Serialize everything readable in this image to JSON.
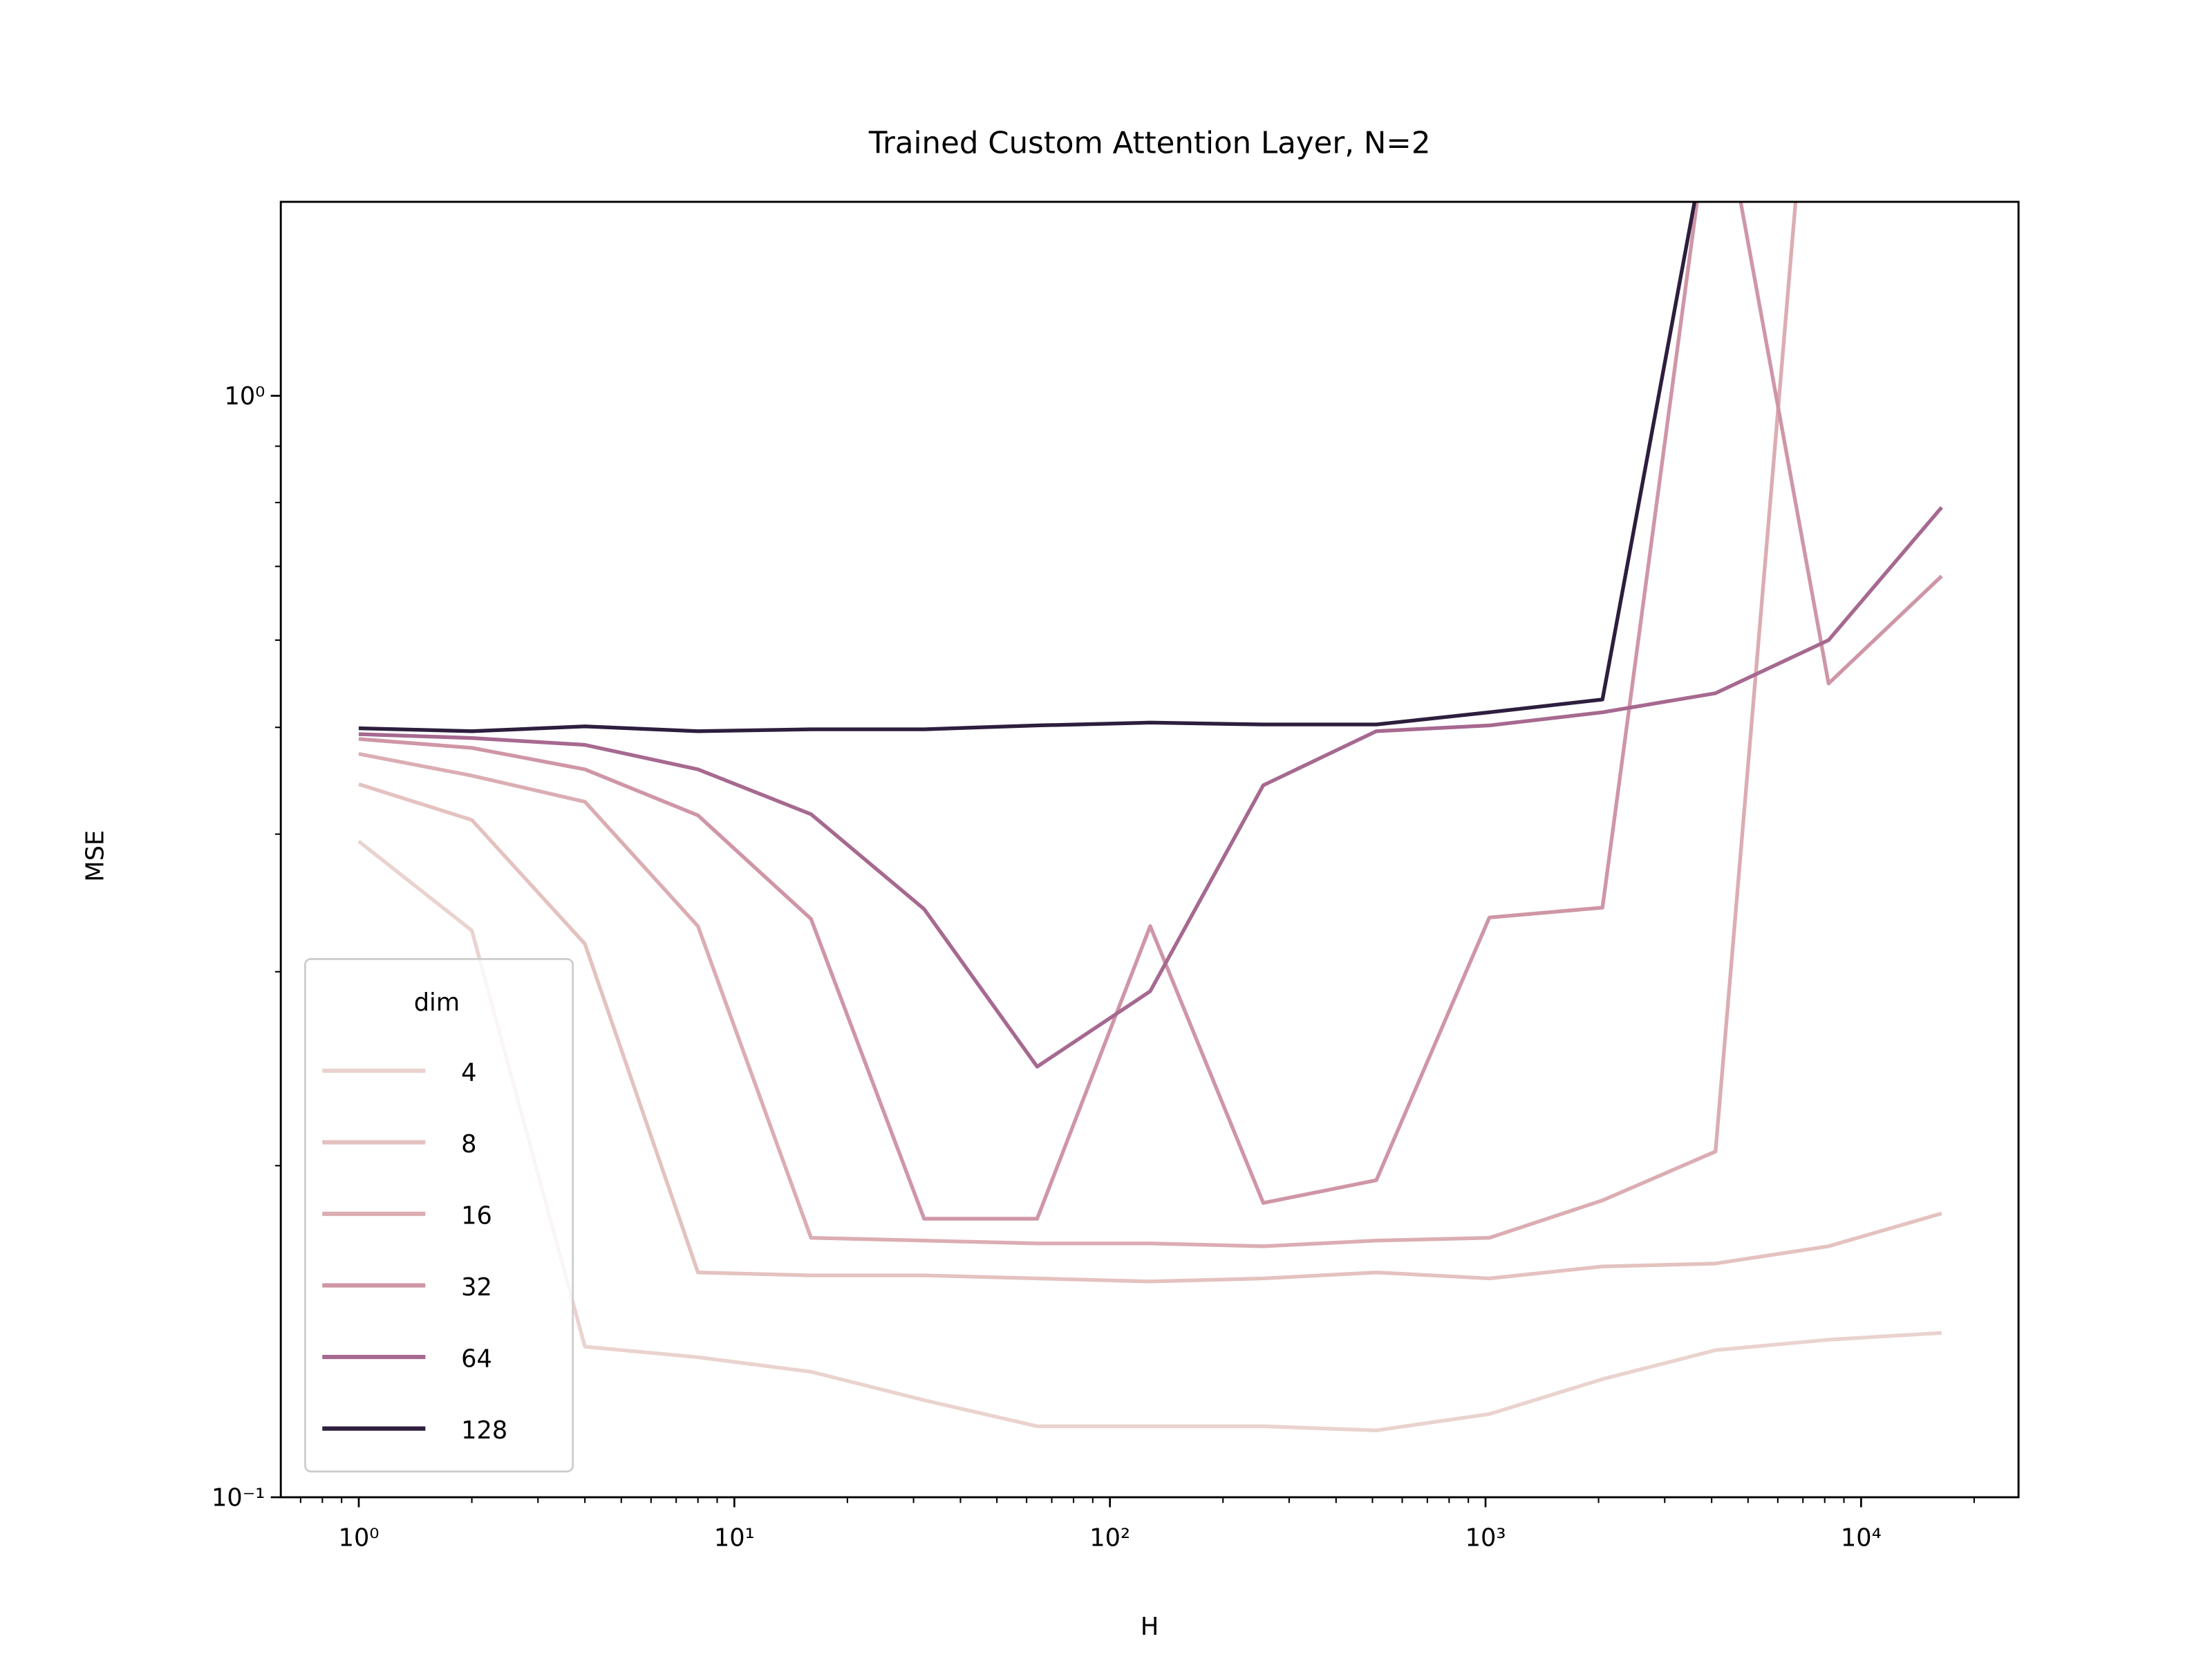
{
  "chart_data": {
    "type": "line",
    "title": "Trained Custom Attention Layer, N=2",
    "x_label": "H",
    "y_label": "MSE",
    "x_scale": "log",
    "y_scale": "log",
    "legend_title": "dim",
    "legend_position": "lower left",
    "x": [
      1,
      2,
      4,
      8,
      16,
      32,
      64,
      128,
      256,
      512,
      1024,
      2048,
      4096,
      8192,
      16384
    ],
    "series": [
      {
        "name": "4",
        "color": "#ead3cf",
        "values": [
          0.394,
          0.327,
          0.137,
          0.134,
          0.13,
          0.1225,
          0.116,
          0.116,
          0.116,
          0.115,
          0.119,
          0.128,
          0.136,
          0.139,
          0.141
        ]
      },
      {
        "name": "8",
        "color": "#e4c2c0",
        "values": [
          0.444,
          0.412,
          0.318,
          0.16,
          0.159,
          0.159,
          0.158,
          0.157,
          0.158,
          0.16,
          0.158,
          0.162,
          0.163,
          0.169,
          0.181
        ]
      },
      {
        "name": "16",
        "color": "#dbadb3",
        "values": [
          0.473,
          0.452,
          0.428,
          0.33,
          0.172,
          0.171,
          0.17,
          0.17,
          0.169,
          0.171,
          0.172,
          0.186,
          0.206,
          3.4,
          null
        ]
      },
      {
        "name": "32",
        "color": "#cf96a6",
        "values": [
          0.488,
          0.479,
          0.458,
          0.416,
          0.335,
          0.179,
          0.179,
          0.33,
          0.185,
          0.194,
          0.336,
          0.343,
          2.0,
          0.548,
          0.686
        ]
      },
      {
        "name": "64",
        "color": "#a66990",
        "values": [
          0.493,
          0.489,
          0.482,
          0.458,
          0.417,
          0.342,
          0.246,
          0.288,
          0.443,
          0.496,
          0.502,
          0.516,
          0.537,
          0.6,
          0.792
        ]
      },
      {
        "name": "128",
        "color": "#2d1e3e",
        "values": [
          0.499,
          0.496,
          0.501,
          0.496,
          0.498,
          0.498,
          0.502,
          0.505,
          0.503,
          0.503,
          0.516,
          0.53,
          1.9,
          null,
          null
        ]
      }
    ],
    "xlim": [
      0.62,
      26250
    ],
    "ylim": [
      0.1,
      1.5
    ],
    "xticks": [
      {
        "value": 1,
        "label": "10⁰"
      },
      {
        "value": 10,
        "label": "10¹"
      },
      {
        "value": 100,
        "label": "10²"
      },
      {
        "value": 1000,
        "label": "10³"
      },
      {
        "value": 10000,
        "label": "10⁴"
      }
    ],
    "yticks": [
      {
        "value": 0.1,
        "label": "10⁻¹"
      },
      {
        "value": 1,
        "label": "10⁰"
      }
    ],
    "xminorticks": [
      0.7,
      0.8,
      0.9,
      2,
      3,
      4,
      5,
      6,
      7,
      8,
      9,
      20,
      30,
      40,
      50,
      60,
      70,
      80,
      90,
      200,
      300,
      400,
      500,
      600,
      700,
      800,
      900,
      2000,
      3000,
      4000,
      5000,
      6000,
      7000,
      8000,
      9000,
      20000
    ],
    "yminorticks": [
      0.2,
      0.3,
      0.4,
      0.5,
      0.6,
      0.7,
      0.8,
      0.9
    ],
    "grid": false
  }
}
